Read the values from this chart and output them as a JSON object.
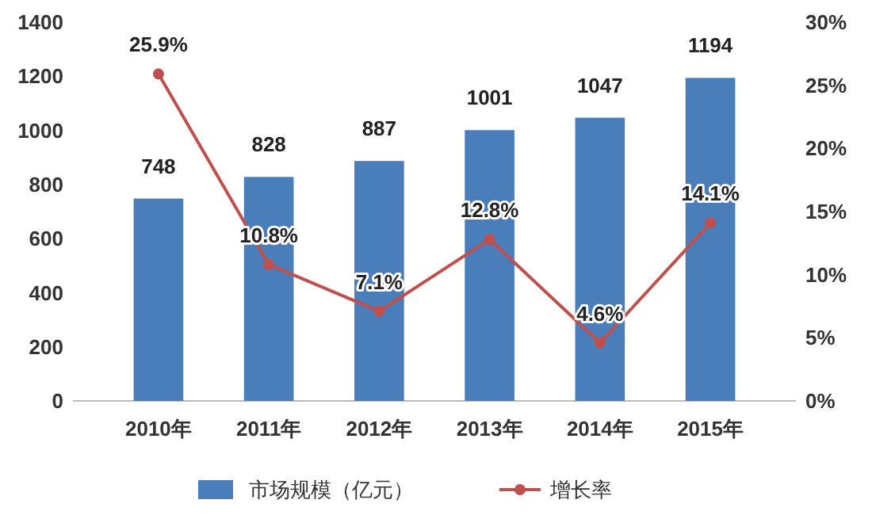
{
  "chart_data": {
    "type": "bar",
    "categories": [
      "2010年",
      "2011年",
      "2012年",
      "2013年",
      "2014年",
      "2015年"
    ],
    "series": [
      {
        "name": "市场规模（亿元）",
        "color": "#4a7ebb",
        "values": [
          748,
          828,
          887,
          1001,
          1047,
          1194
        ],
        "value_labels": [
          "748",
          "828",
          "887",
          "1001",
          "1047",
          "1194"
        ]
      },
      {
        "name": "增长率",
        "type": "line",
        "axis": "y2",
        "color": "#c0504d",
        "values": [
          25.9,
          10.8,
          7.1,
          12.8,
          4.6,
          14.1
        ],
        "value_labels": [
          "25.9%",
          "10.8%",
          "7.1%",
          "12.8%",
          "4.6%",
          "14.1%"
        ]
      }
    ],
    "ylim": [
      0,
      1400
    ],
    "yticks": [
      0,
      200,
      400,
      600,
      800,
      1000,
      1200,
      1400
    ],
    "y2lim": [
      0,
      30
    ],
    "y2ticks": [
      {
        "value": 0,
        "label": "0%"
      },
      {
        "value": 5,
        "label": "5%"
      },
      {
        "value": 10,
        "label": "10%"
      },
      {
        "value": 15,
        "label": "15%"
      },
      {
        "value": 20,
        "label": "20%"
      },
      {
        "value": 25,
        "label": "25%"
      },
      {
        "value": 30,
        "label": "30%"
      }
    ],
    "marker": "circle",
    "legend": "bottom",
    "grid": false
  }
}
